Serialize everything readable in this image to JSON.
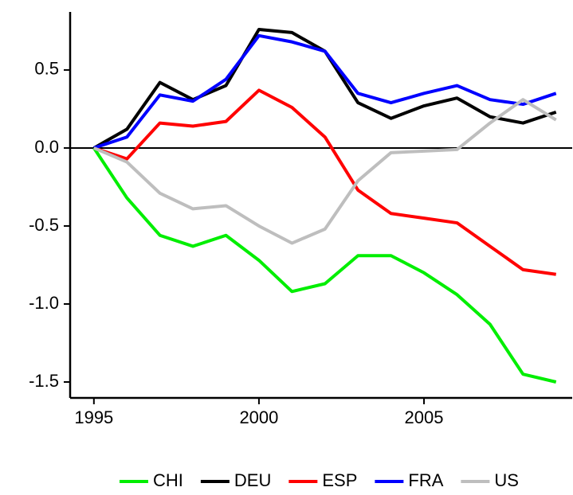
{
  "chart_data": {
    "type": "line",
    "x": [
      1995,
      1996,
      1997,
      1998,
      1999,
      2000,
      2001,
      2002,
      2003,
      2004,
      2005,
      2006,
      2007,
      2008,
      2009
    ],
    "series": [
      {
        "name": "CHI",
        "color": "#00ee00",
        "values": [
          0,
          -0.32,
          -0.56,
          -0.63,
          -0.56,
          -0.72,
          -0.92,
          -0.87,
          -0.69,
          -0.69,
          -0.8,
          -0.94,
          -1.13,
          -1.45,
          -1.5
        ]
      },
      {
        "name": "DEU",
        "color": "#000000",
        "values": [
          0,
          0.12,
          0.42,
          0.31,
          0.4,
          0.76,
          0.74,
          0.62,
          0.29,
          0.19,
          0.27,
          0.32,
          0.2,
          0.16,
          0.23
        ]
      },
      {
        "name": "ESP",
        "color": "#ff0000",
        "values": [
          0,
          -0.07,
          0.16,
          0.14,
          0.17,
          0.37,
          0.26,
          0.07,
          -0.27,
          -0.42,
          -0.45,
          -0.48,
          -0.63,
          -0.78,
          -0.81
        ]
      },
      {
        "name": "FRA",
        "color": "#0000ff",
        "values": [
          0,
          0.07,
          0.34,
          0.3,
          0.44,
          0.72,
          0.68,
          0.62,
          0.35,
          0.29,
          0.35,
          0.4,
          0.31,
          0.28,
          0.35
        ]
      },
      {
        "name": "US",
        "color": "#bebebe",
        "values": [
          0,
          -0.09,
          -0.29,
          -0.39,
          -0.37,
          -0.5,
          -0.61,
          -0.52,
          -0.21,
          -0.03,
          -0.02,
          -0.01,
          0.16,
          0.31,
          0.18
        ]
      }
    ],
    "xlim": [
      1994.28,
      2009.49
    ],
    "xticks": [
      1995,
      2000,
      2005
    ],
    "ylim": [
      -1.602,
      0.872
    ],
    "yticks": [
      -1.5,
      {
        "value": -1,
        "label": "-1.0"
      },
      -0.5,
      {
        "value": 0,
        "label": "0.0"
      },
      0.5
    ],
    "zero_line": true,
    "legend": "bottom"
  }
}
